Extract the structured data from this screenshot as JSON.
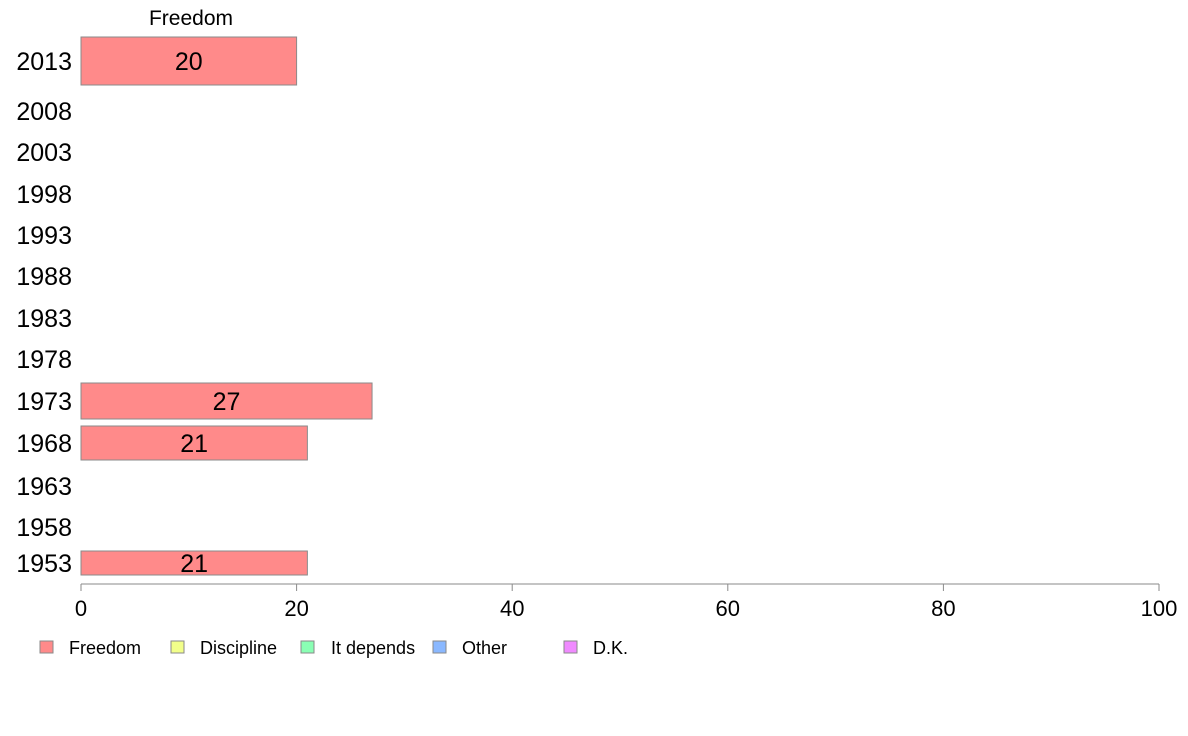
{
  "chart_data": {
    "type": "bar",
    "orientation": "horizontal",
    "column_header": "Freedom",
    "categories": [
      "2013",
      "2008",
      "2003",
      "1998",
      "1993",
      "1988",
      "1983",
      "1978",
      "1973",
      "1968",
      "1963",
      "1958",
      "1953"
    ],
    "series": [
      {
        "name": "Freedom",
        "color": "#ff8a8a",
        "values": [
          20,
          null,
          null,
          null,
          null,
          null,
          null,
          null,
          27,
          21,
          null,
          null,
          21
        ]
      }
    ],
    "xlim": [
      0,
      100
    ],
    "xticks": [
      "0",
      "20",
      "40",
      "60",
      "80",
      "100"
    ],
    "grid": false,
    "legend_position": "bottom-left",
    "legend": [
      {
        "label": "Freedom",
        "color": "#ff8a8a"
      },
      {
        "label": "Discipline",
        "color": "#f2ff8a"
      },
      {
        "label": "It depends",
        "color": "#8affb4"
      },
      {
        "label": "Other",
        "color": "#8ab8ff"
      },
      {
        "label": "D.K.",
        "color": "#f08aff"
      }
    ]
  }
}
